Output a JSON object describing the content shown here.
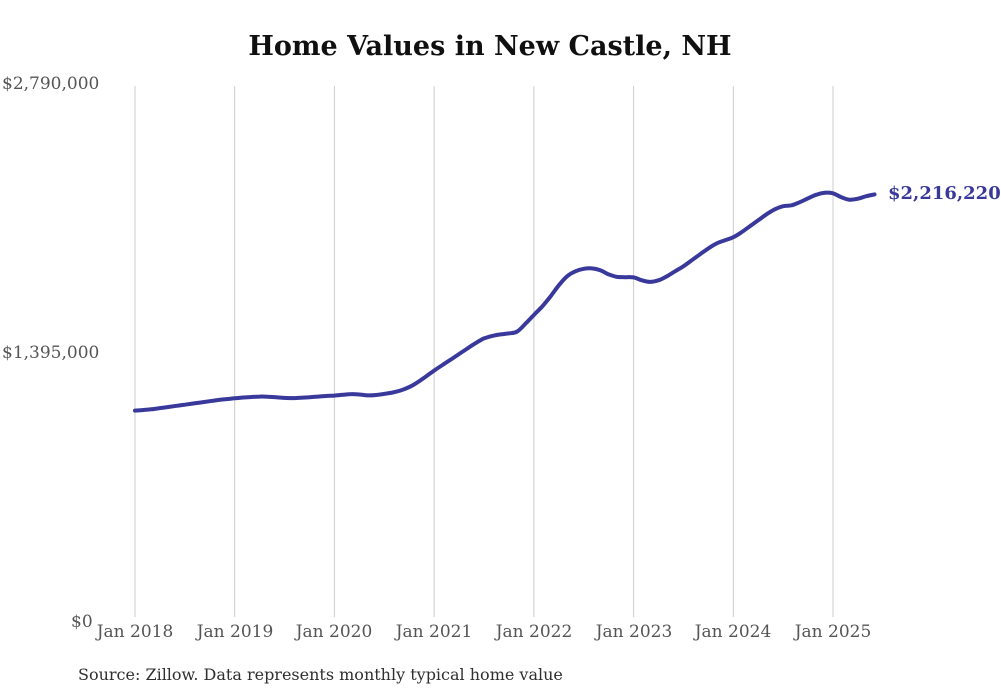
{
  "page": {
    "source_note": "Source: Zillow. Data represents monthly typical home value"
  },
  "chart_data": {
    "type": "line",
    "title": "Home Values in New Castle, NH",
    "xlabel": "",
    "ylabel": "",
    "ylim": [
      0,
      2790000
    ],
    "y_ticks": [
      "$0",
      "$1,395,000",
      "$2,790,000"
    ],
    "x_ticks": [
      "Jan 2018",
      "Jan 2019",
      "Jan 2020",
      "Jan 2021",
      "Jan 2022",
      "Jan 2023",
      "Jan 2024",
      "Jan 2025"
    ],
    "latest_value": 2216220,
    "latest_value_label": "$2,216,220",
    "line_color": "#39399c",
    "grid_color": "#cccccc",
    "grid": "vertical-only",
    "legend": "none",
    "x": [
      "2018-01",
      "2018-02",
      "2018-03",
      "2018-04",
      "2018-05",
      "2018-06",
      "2018-07",
      "2018-08",
      "2018-09",
      "2018-10",
      "2018-11",
      "2018-12",
      "2019-01",
      "2019-02",
      "2019-03",
      "2019-04",
      "2019-05",
      "2019-06",
      "2019-07",
      "2019-08",
      "2019-09",
      "2019-10",
      "2019-11",
      "2019-12",
      "2020-01",
      "2020-02",
      "2020-03",
      "2020-04",
      "2020-05",
      "2020-06",
      "2020-07",
      "2020-08",
      "2020-09",
      "2020-10",
      "2020-11",
      "2020-12",
      "2021-01",
      "2021-02",
      "2021-03",
      "2021-04",
      "2021-05",
      "2021-06",
      "2021-07",
      "2021-08",
      "2021-09",
      "2021-10",
      "2021-11",
      "2021-12",
      "2022-01",
      "2022-02",
      "2022-03",
      "2022-04",
      "2022-05",
      "2022-06",
      "2022-07",
      "2022-08",
      "2022-09",
      "2022-10",
      "2022-11",
      "2022-12",
      "2023-01",
      "2023-02",
      "2023-03",
      "2023-04",
      "2023-05",
      "2023-06",
      "2023-07",
      "2023-08",
      "2023-09",
      "2023-10",
      "2023-11",
      "2023-12",
      "2024-01",
      "2024-02",
      "2024-03",
      "2024-04",
      "2024-05",
      "2024-06",
      "2024-07",
      "2024-08",
      "2024-09",
      "2024-10",
      "2024-11",
      "2024-12",
      "2025-01",
      "2025-02",
      "2025-03",
      "2025-04",
      "2025-05",
      "2025-06"
    ],
    "values": [
      1093000,
      1096000,
      1100000,
      1106000,
      1112000,
      1118000,
      1124000,
      1130000,
      1136000,
      1142000,
      1148000,
      1153000,
      1157000,
      1161000,
      1164000,
      1166000,
      1165000,
      1162000,
      1159000,
      1158000,
      1160000,
      1163000,
      1166000,
      1169000,
      1171000,
      1175000,
      1179000,
      1177000,
      1172000,
      1174000,
      1180000,
      1187000,
      1198000,
      1215000,
      1240000,
      1270000,
      1301000,
      1330000,
      1358000,
      1387000,
      1416000,
      1444000,
      1468000,
      1481000,
      1489000,
      1494000,
      1504000,
      1545000,
      1590000,
      1634000,
      1686000,
      1744000,
      1791000,
      1817000,
      1830000,
      1832000,
      1822000,
      1801000,
      1788000,
      1786000,
      1785000,
      1770000,
      1762000,
      1770000,
      1791000,
      1817000,
      1843000,
      1874000,
      1905000,
      1936000,
      1962000,
      1978000,
      1994000,
      2020000,
      2051000,
      2082000,
      2113000,
      2139000,
      2155000,
      2160000,
      2176000,
      2196000,
      2215000,
      2225000,
      2222000,
      2202000,
      2189000,
      2194000,
      2207000,
      2216220
    ]
  }
}
